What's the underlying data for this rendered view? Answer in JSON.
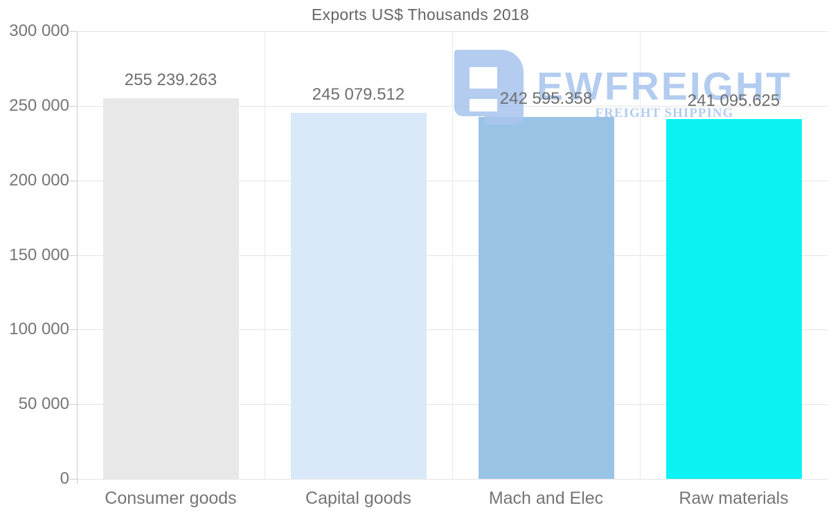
{
  "title": "Exports US$ Thousands 2018",
  "watermark": {
    "brand": "EWFREIGHT",
    "tagline": "FREIGHT SHIPPING",
    "color": "#a9c6ef"
  },
  "chart_data": {
    "type": "bar",
    "title": "Exports US$ Thousands 2018",
    "categories": [
      "Consumer goods",
      "Capital goods",
      "Mach and Elec",
      "Raw materials"
    ],
    "values": [
      255239.263,
      245079.512,
      242595.358,
      241095.625
    ],
    "value_labels": [
      "255 239.263",
      "245 079.512",
      "242 595.358",
      "241 095.625"
    ],
    "bar_colors": [
      "#e8e8e8",
      "#d9e9f9",
      "#9ac4e6",
      "#0bf3f3"
    ],
    "xlabel": "",
    "ylabel": "",
    "ylim": [
      0,
      300000
    ],
    "ytick_step": 50000,
    "ytick_labels": [
      "0",
      "50 000",
      "100 000",
      "150 000",
      "200 000",
      "250 000",
      "300 000"
    ],
    "grid": true,
    "legend": "none",
    "label_color": "#757575",
    "grid_color": "#e3e3e3"
  }
}
